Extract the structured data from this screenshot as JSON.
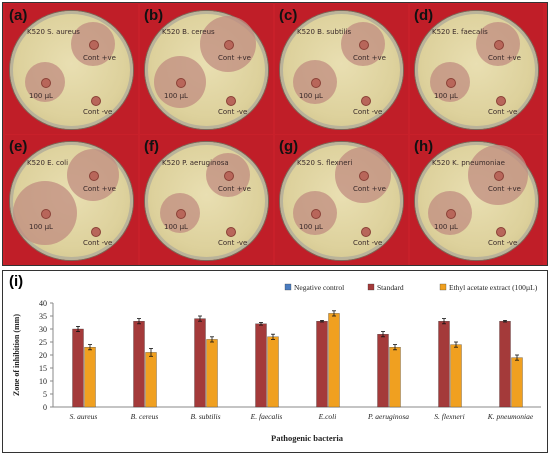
{
  "panels": [
    {
      "label": "(a)",
      "title": "K520  S. aureus",
      "std": "Cont +ve",
      "ext": "100 µL",
      "neg": "Cont -ve"
    },
    {
      "label": "(b)",
      "title": "K520  B. cereus",
      "std": "Cont +ve",
      "ext": "100 µL",
      "neg": "Cont -ve"
    },
    {
      "label": "(c)",
      "title": "K520  B. subtilis",
      "std": "Cont +ve",
      "ext": "100 µL",
      "neg": "Cont -ve"
    },
    {
      "label": "(d)",
      "title": "K520  E. faecalis",
      "std": "Cont +ve",
      "ext": "100 µL",
      "neg": "Cont -ve"
    },
    {
      "label": "(e)",
      "title": "K520  E. coli",
      "std": "Cont +ve",
      "ext": "100 µL",
      "neg": "Cont -ve"
    },
    {
      "label": "(f)",
      "title": "K520  P. aeruginosa",
      "std": "Cont +ve",
      "ext": "100 µL",
      "neg": "Cont -ve"
    },
    {
      "label": "(g)",
      "title": "K520  S. flexneri",
      "std": "Cont +ve",
      "ext": "100 µL",
      "neg": "Cont -ve"
    },
    {
      "label": "(h)",
      "title": "K520  K. pneumoniae",
      "std": "Cont +ve",
      "ext": "100 µL",
      "neg": "Cont -ve"
    }
  ],
  "chart_label": "(i)",
  "chart_data": {
    "type": "bar",
    "categories": [
      "S. aureus",
      "B. cereus",
      "B. subtilis",
      "E. faecalis",
      "E.coli",
      "P. aeruginosa",
      "S. flexneri",
      "K. pneumoniae"
    ],
    "series": [
      {
        "name": "Negative control",
        "color": "#4a7cc0",
        "values": [
          0,
          0,
          0,
          0,
          0,
          0,
          0,
          0
        ],
        "errors": [
          0,
          0,
          0,
          0,
          0,
          0,
          0,
          0
        ]
      },
      {
        "name": "Standard",
        "color": "#a43a3a",
        "values": [
          30,
          33,
          34,
          32,
          33,
          28,
          33,
          33
        ],
        "errors": [
          1,
          1,
          1,
          0.5,
          0.3,
          1,
          1,
          0.3
        ]
      },
      {
        "name": "Ethyl acetate extract (100µL)",
        "color": "#f0a020",
        "values": [
          23,
          21,
          26,
          27,
          36,
          23,
          24,
          19
        ],
        "errors": [
          1,
          1.5,
          1,
          1,
          1,
          1,
          1,
          1
        ]
      }
    ],
    "xlabel": "Pathogenic bacteria",
    "ylabel": "Zone of inhibition (mm)",
    "ylim": [
      0,
      40
    ],
    "yticks": [
      0,
      5,
      10,
      15,
      20,
      25,
      30,
      35,
      40
    ],
    "legend": "top-right"
  }
}
